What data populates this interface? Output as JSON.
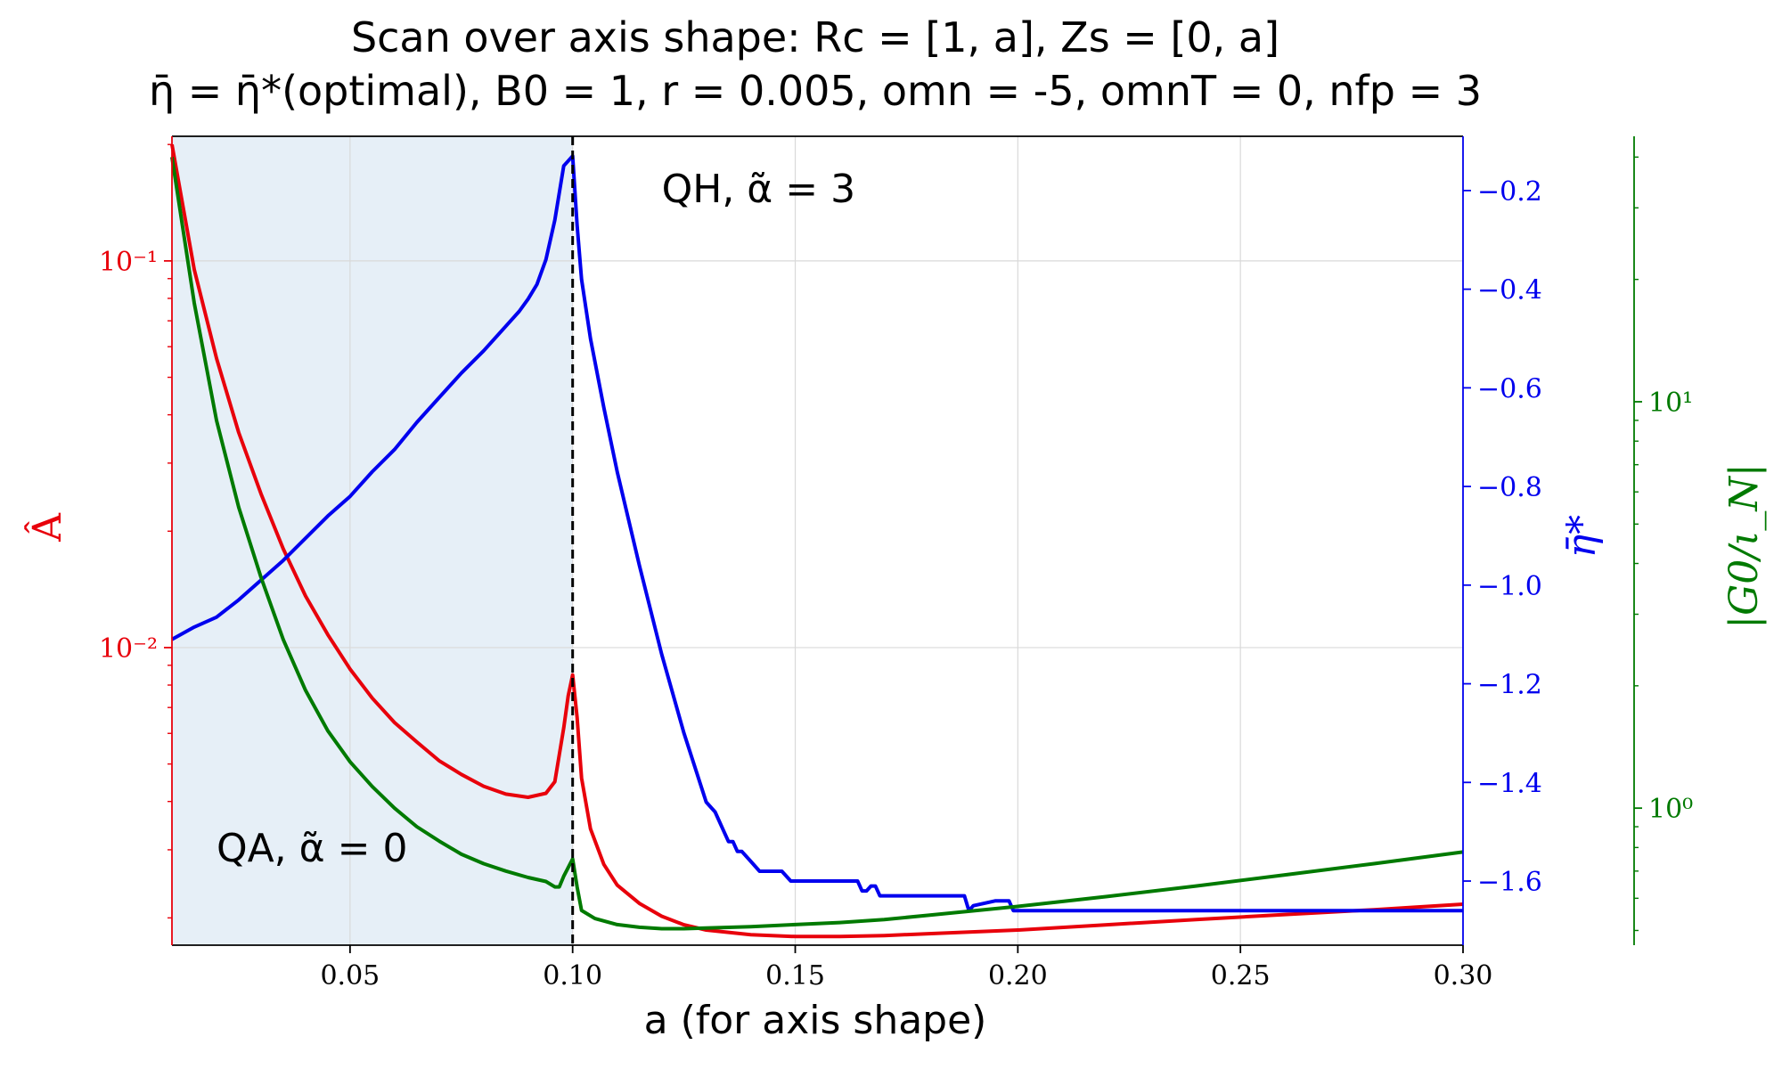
{
  "chart_data": {
    "type": "line",
    "title_line1": "Scan over axis shape: Rc = [1, a], Zs = [0, a]",
    "title_line2": "η̄ = η̄*(optimal), B0 = 1, r = 0.005, omn = -5, omnT = 0, nfp = 3",
    "xlabel": "a (for axis shape)",
    "xlim": [
      0.01,
      0.3
    ],
    "xticks": [
      0.05,
      0.1,
      0.15,
      0.2,
      0.25,
      0.3
    ],
    "xtick_labels": [
      "0.05",
      "0.10",
      "0.15",
      "0.20",
      "0.25",
      "0.30"
    ],
    "grid": true,
    "shaded_region": {
      "x_start": 0.01,
      "x_end": 0.1,
      "color": "#e6eff7"
    },
    "vline": {
      "x": 0.1,
      "style": "dashed",
      "color": "#000000"
    },
    "annotations": [
      {
        "text": "QH, α̃ = 3",
        "x": 0.12,
        "y_frac": 0.935
      },
      {
        "text": "QA, α̃ = 0",
        "x": 0.02,
        "y_frac": 0.12
      }
    ],
    "axes": {
      "left": {
        "label": "Â",
        "scale": "log",
        "ylim": [
          0.0017,
          0.21
        ],
        "ticks": [
          0.01,
          0.1
        ],
        "tick_labels": [
          "10⁻²",
          "10⁻¹"
        ],
        "color": "#e8000b"
      },
      "right1": {
        "label": "η̄*",
        "scale": "linear",
        "ylim": [
          -1.73,
          -0.09
        ],
        "ticks": [
          -1.6,
          -1.4,
          -1.2,
          -1.0,
          -0.8,
          -0.6,
          -0.4,
          -0.2
        ],
        "tick_labels": [
          "−1.6",
          "−1.4",
          "−1.2",
          "−1.0",
          "−0.8",
          "−0.6",
          "−0.4",
          "−0.2"
        ],
        "color": "#0000ee"
      },
      "right2": {
        "label": "|G0/ι_N|",
        "scale": "log",
        "ylim": [
          0.46,
          45
        ],
        "ticks": [
          1,
          10
        ],
        "tick_labels": [
          "10⁰",
          "10¹"
        ],
        "color": "#007a00"
      }
    },
    "series": [
      {
        "name": "Â",
        "axis": "left",
        "color": "#e8000b",
        "x": [
          0.01,
          0.015,
          0.02,
          0.025,
          0.03,
          0.035,
          0.04,
          0.045,
          0.05,
          0.055,
          0.06,
          0.065,
          0.07,
          0.075,
          0.08,
          0.085,
          0.09,
          0.094,
          0.096,
          0.098,
          0.099,
          0.1,
          0.101,
          0.102,
          0.104,
          0.107,
          0.11,
          0.115,
          0.12,
          0.125,
          0.13,
          0.14,
          0.15,
          0.16,
          0.17,
          0.18,
          0.2,
          0.22,
          0.24,
          0.26,
          0.28,
          0.3
        ],
        "y": [
          0.2,
          0.095,
          0.056,
          0.036,
          0.025,
          0.018,
          0.0136,
          0.0108,
          0.0088,
          0.0074,
          0.0064,
          0.0057,
          0.0051,
          0.0047,
          0.00438,
          0.00418,
          0.0041,
          0.0042,
          0.0045,
          0.0062,
          0.0075,
          0.0085,
          0.0066,
          0.0046,
          0.0034,
          0.00275,
          0.00243,
          0.00218,
          0.00202,
          0.00192,
          0.00186,
          0.00181,
          0.00179,
          0.00179,
          0.0018,
          0.00182,
          0.00186,
          0.00192,
          0.00198,
          0.00204,
          0.0021,
          0.00217
        ]
      },
      {
        "name": "η̄*",
        "axis": "right1",
        "color": "#0000ee",
        "x": [
          0.01,
          0.015,
          0.02,
          0.025,
          0.03,
          0.035,
          0.04,
          0.045,
          0.05,
          0.055,
          0.06,
          0.065,
          0.07,
          0.075,
          0.08,
          0.085,
          0.088,
          0.09,
          0.092,
          0.094,
          0.096,
          0.098,
          0.099,
          0.1,
          0.101,
          0.102,
          0.104,
          0.107,
          0.11,
          0.115,
          0.12,
          0.125,
          0.13,
          0.132,
          0.134,
          0.135,
          0.136,
          0.137,
          0.138,
          0.14,
          0.142,
          0.143,
          0.146,
          0.147,
          0.149,
          0.15,
          0.155,
          0.16,
          0.164,
          0.165,
          0.166,
          0.167,
          0.168,
          0.169,
          0.17,
          0.18,
          0.188,
          0.189,
          0.19,
          0.195,
          0.198,
          0.199,
          0.2,
          0.22,
          0.25,
          0.3
        ],
        "y": [
          -1.11,
          -1.085,
          -1.065,
          -1.03,
          -0.99,
          -0.95,
          -0.905,
          -0.86,
          -0.82,
          -0.77,
          -0.725,
          -0.67,
          -0.62,
          -0.57,
          -0.525,
          -0.475,
          -0.445,
          -0.42,
          -0.39,
          -0.34,
          -0.26,
          -0.15,
          -0.14,
          -0.13,
          -0.27,
          -0.38,
          -0.5,
          -0.64,
          -0.77,
          -0.96,
          -1.14,
          -1.3,
          -1.44,
          -1.46,
          -1.5,
          -1.52,
          -1.52,
          -1.54,
          -1.54,
          -1.56,
          -1.58,
          -1.58,
          -1.58,
          -1.58,
          -1.6,
          -1.6,
          -1.6,
          -1.6,
          -1.6,
          -1.62,
          -1.62,
          -1.61,
          -1.61,
          -1.63,
          -1.63,
          -1.63,
          -1.63,
          -1.66,
          -1.65,
          -1.64,
          -1.64,
          -1.66,
          -1.66,
          -1.66,
          -1.66,
          -1.66
        ]
      },
      {
        "name": "|G0/ι_N|",
        "axis": "right2",
        "color": "#007a00",
        "x": [
          0.01,
          0.015,
          0.02,
          0.025,
          0.03,
          0.035,
          0.04,
          0.045,
          0.05,
          0.055,
          0.06,
          0.065,
          0.07,
          0.075,
          0.08,
          0.085,
          0.09,
          0.094,
          0.096,
          0.097,
          0.098,
          0.1,
          0.101,
          0.102,
          0.105,
          0.11,
          0.115,
          0.12,
          0.125,
          0.13,
          0.14,
          0.15,
          0.16,
          0.17,
          0.18,
          0.2,
          0.22,
          0.24,
          0.26,
          0.28,
          0.3
        ],
        "y": [
          40,
          17.5,
          9.0,
          5.5,
          3.7,
          2.6,
          1.95,
          1.55,
          1.3,
          1.13,
          1.0,
          0.9,
          0.83,
          0.77,
          0.73,
          0.7,
          0.675,
          0.66,
          0.64,
          0.64,
          0.68,
          0.75,
          0.64,
          0.56,
          0.535,
          0.517,
          0.509,
          0.505,
          0.505,
          0.507,
          0.511,
          0.517,
          0.523,
          0.532,
          0.545,
          0.573,
          0.606,
          0.643,
          0.685,
          0.73,
          0.78
        ]
      }
    ]
  }
}
